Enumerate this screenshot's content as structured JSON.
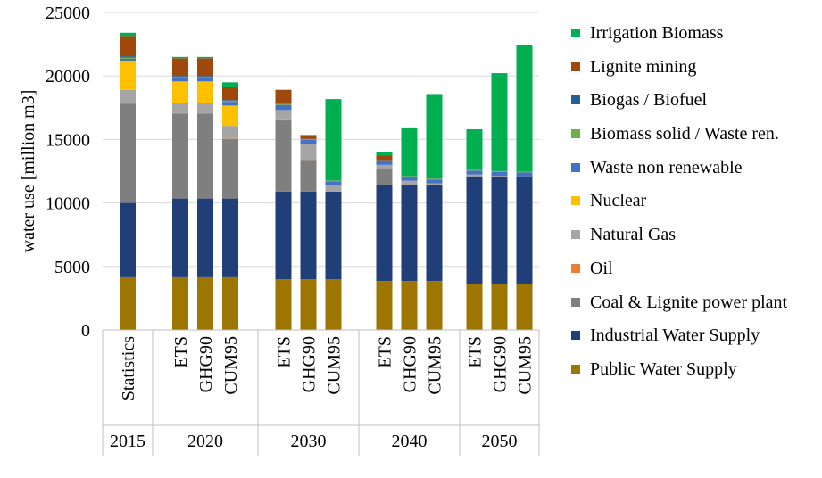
{
  "chart_data": {
    "type": "bar",
    "stacked": true,
    "title": "",
    "ylabel": "water use  [million m3]",
    "ylim": [
      0,
      25000
    ],
    "yticks": [
      0,
      5000,
      10000,
      15000,
      20000,
      25000
    ],
    "ytick_labels": [
      "0",
      "5000",
      "10000",
      "15000",
      "20000",
      "25000"
    ],
    "grid": true,
    "legend_position": "right",
    "groups": [
      {
        "label": "2015",
        "categories": [
          "Statistics"
        ]
      },
      {
        "label": "2020",
        "categories": [
          "ETS",
          "GHG90",
          "CUM95"
        ]
      },
      {
        "label": "2030",
        "categories": [
          "ETS",
          "GHG90",
          "CUM95"
        ]
      },
      {
        "label": "2040",
        "categories": [
          "ETS",
          "GHG90",
          "CUM95"
        ]
      },
      {
        "label": "2050",
        "categories": [
          "ETS",
          "GHG90",
          "CUM95"
        ]
      }
    ],
    "series": [
      {
        "name": "Public Water Supply",
        "color": "#9c7600",
        "values": [
          4150,
          4150,
          4150,
          4150,
          4000,
          4000,
          4000,
          3850,
          3850,
          3850,
          3650,
          3650,
          3650
        ]
      },
      {
        "name": "Industrial Water Supply",
        "color": "#203f79",
        "values": [
          5850,
          6200,
          6200,
          6200,
          6900,
          6900,
          6900,
          7550,
          7550,
          7550,
          8450,
          8450,
          8450
        ]
      },
      {
        "name": "Coal & Lignite power plant",
        "color": "#7f7f7f",
        "values": [
          7800,
          6700,
          6700,
          4700,
          5600,
          2500,
          0,
          1300,
          0,
          0,
          0,
          0,
          0
        ]
      },
      {
        "name": "Oil",
        "color": "#ed7d31",
        "values": [
          100,
          20,
          20,
          20,
          20,
          10,
          0,
          0,
          0,
          0,
          0,
          0,
          0
        ]
      },
      {
        "name": "Natural Gas",
        "color": "#a5a5a5",
        "values": [
          1000,
          800,
          800,
          1000,
          800,
          1200,
          500,
          300,
          350,
          150,
          150,
          50,
          0
        ]
      },
      {
        "name": "Nuclear",
        "color": "#ffc000",
        "values": [
          2300,
          1700,
          1700,
          1600,
          0,
          0,
          0,
          0,
          0,
          0,
          0,
          0,
          0
        ]
      },
      {
        "name": "Waste non renewable",
        "color": "#4472c4",
        "values": [
          150,
          250,
          250,
          300,
          400,
          350,
          300,
          300,
          300,
          300,
          300,
          300,
          300
        ]
      },
      {
        "name": "Biomass solid / Waste ren.",
        "color": "#70ad47",
        "values": [
          100,
          100,
          100,
          80,
          60,
          60,
          60,
          60,
          60,
          60,
          50,
          50,
          50
        ]
      },
      {
        "name": "Biogas / Biofuel",
        "color": "#255e91",
        "values": [
          100,
          80,
          80,
          50,
          30,
          30,
          20,
          20,
          20,
          20,
          20,
          20,
          20
        ]
      },
      {
        "name": "Lignite mining",
        "color": "#9e480e",
        "values": [
          1600,
          1400,
          1400,
          1050,
          1100,
          300,
          0,
          350,
          0,
          0,
          0,
          0,
          0
        ]
      },
      {
        "name": "Irrigation Biomass",
        "color": "#00b050",
        "values": [
          250,
          100,
          100,
          350,
          0,
          0,
          6400,
          270,
          3820,
          6650,
          3180,
          7700,
          9950
        ]
      }
    ]
  }
}
